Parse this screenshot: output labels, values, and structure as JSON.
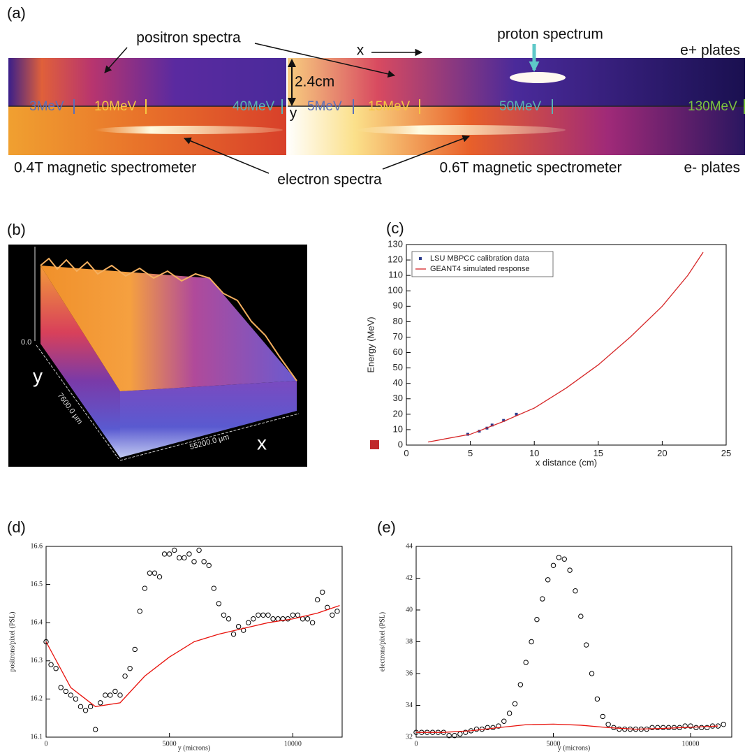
{
  "panel_a": {
    "panel_label": "(a)",
    "annotations": {
      "positron": "positron spectra",
      "proton": "proton spectrum",
      "x": "x",
      "e_plus": "e+ plates",
      "width": "2.4cm",
      "y": "y",
      "electron": "electron spectra",
      "left_spectrometer": "0.4T magnetic spectrometer",
      "right_spectrometer": "0.6T magnetic spectrometer",
      "e_minus": "e- plates"
    },
    "energy_marks": [
      "3MeV",
      "10MeV",
      "40MeV",
      "5MeV",
      "15MeV",
      "50MeV",
      "130MeV"
    ]
  },
  "panel_b": {
    "panel_label": "(b)",
    "z_label": "0.0",
    "y_label": "y",
    "y_extent": "7600.0 μm",
    "x_extent": "55200.0 μm",
    "x_label": "x"
  },
  "chart_data": [
    {
      "type": "scatter",
      "panel_label": "(c)",
      "x_label": "x distance (cm)",
      "y_label": "Energy (MeV)",
      "xlim": [
        0,
        25
      ],
      "xticks": [
        0,
        5,
        10,
        15,
        20,
        25
      ],
      "ylim": [
        0,
        130
      ],
      "yticks": [
        0,
        10,
        20,
        30,
        40,
        50,
        60,
        70,
        80,
        90,
        100,
        110,
        120,
        130
      ],
      "legend": "upper left",
      "series": [
        {
          "name": "LSU MBPCC calibration data",
          "mode": "markers",
          "marker": "square",
          "color": "#2b3a8c",
          "x": [
            4.8,
            5.7,
            6.3,
            6.7,
            7.6,
            8.6
          ],
          "values": [
            7,
            9,
            11,
            13,
            16,
            20
          ]
        },
        {
          "name": "GEANT4 simulated response",
          "mode": "line",
          "color": "#d62728",
          "x": [
            1.7,
            5,
            7.5,
            10,
            12.5,
            15,
            17.5,
            20,
            22,
            23.2
          ],
          "values": [
            2,
            7,
            15,
            24,
            37,
            52,
            70,
            90,
            110,
            125
          ]
        }
      ]
    },
    {
      "type": "scatter",
      "panel_label": "(d)",
      "x_label": "y (microns)",
      "y_label": "positrons/pixel (PSL)",
      "xlim": [
        0,
        12000
      ],
      "xticks": [
        0,
        5000,
        10000
      ],
      "ylim": [
        16.1,
        16.6
      ],
      "yticks": [
        16.1,
        16.2,
        16.3,
        16.4,
        16.5,
        16.6
      ],
      "series": [
        {
          "mode": "markers",
          "marker": "circle",
          "color": "#000000",
          "x": [
            0,
            200,
            400,
            600,
            800,
            1000,
            1200,
            1400,
            1600,
            1800,
            2000,
            2200,
            2400,
            2600,
            2800,
            3000,
            3200,
            3400,
            3600,
            3800,
            4000,
            4200,
            4400,
            4600,
            4800,
            5000,
            5200,
            5400,
            5600,
            5800,
            6000,
            6200,
            6400,
            6600,
            6800,
            7000,
            7200,
            7400,
            7600,
            7800,
            8000,
            8200,
            8400,
            8600,
            8800,
            9000,
            9200,
            9400,
            9600,
            9800,
            10000,
            10200,
            10400,
            10600,
            10800,
            11000,
            11200,
            11400,
            11600,
            11800
          ],
          "values": [
            16.35,
            16.29,
            16.28,
            16.23,
            16.22,
            16.21,
            16.2,
            16.18,
            16.17,
            16.18,
            16.12,
            16.19,
            16.21,
            16.21,
            16.22,
            16.21,
            16.26,
            16.28,
            16.33,
            16.43,
            16.49,
            16.53,
            16.53,
            16.52,
            16.58,
            16.58,
            16.59,
            16.57,
            16.57,
            16.58,
            16.56,
            16.59,
            16.56,
            16.55,
            16.49,
            16.45,
            16.42,
            16.41,
            16.37,
            16.39,
            16.38,
            16.4,
            16.41,
            16.42,
            16.42,
            16.42,
            16.41,
            16.41,
            16.41,
            16.41,
            16.42,
            16.42,
            16.41,
            16.41,
            16.4,
            16.46,
            16.48,
            16.44,
            16.42,
            16.43
          ]
        },
        {
          "mode": "line",
          "color": "#e8120c",
          "x": [
            0,
            1000,
            2000,
            3000,
            4000,
            5000,
            6000,
            7000,
            8000,
            9000,
            10000,
            11000,
            11900
          ],
          "values": [
            16.35,
            16.23,
            16.18,
            16.19,
            16.26,
            16.31,
            16.35,
            16.37,
            16.385,
            16.4,
            16.41,
            16.425,
            16.445
          ]
        }
      ]
    },
    {
      "type": "scatter",
      "panel_label": "(e)",
      "x_label": "y (microns)",
      "y_label": "electrons/pixel (PSL)",
      "xlim": [
        0,
        11500
      ],
      "xticks": [
        0,
        5000,
        10000
      ],
      "ylim": [
        32,
        44
      ],
      "yticks": [
        32,
        34,
        36,
        38,
        40,
        42,
        44
      ],
      "series": [
        {
          "mode": "markers",
          "marker": "circle",
          "color": "#000000",
          "x": [
            0,
            200,
            400,
            600,
            800,
            1000,
            1200,
            1400,
            1600,
            1800,
            2000,
            2200,
            2400,
            2600,
            2800,
            3000,
            3200,
            3400,
            3600,
            3800,
            4000,
            4200,
            4400,
            4600,
            4800,
            5000,
            5200,
            5400,
            5600,
            5800,
            6000,
            6200,
            6400,
            6600,
            6800,
            7000,
            7200,
            7400,
            7600,
            7800,
            8000,
            8200,
            8400,
            8600,
            8800,
            9000,
            9200,
            9400,
            9600,
            9800,
            10000,
            10200,
            10400,
            10600,
            10800,
            11000,
            11200
          ],
          "values": [
            32.3,
            32.3,
            32.3,
            32.3,
            32.3,
            32.3,
            32.1,
            32.1,
            32.2,
            32.3,
            32.4,
            32.5,
            32.5,
            32.6,
            32.6,
            32.7,
            33.0,
            33.5,
            34.1,
            35.3,
            36.7,
            38.0,
            39.4,
            40.7,
            41.9,
            42.8,
            43.3,
            43.2,
            42.5,
            41.2,
            39.6,
            37.8,
            36.0,
            34.4,
            33.3,
            32.8,
            32.6,
            32.5,
            32.5,
            32.5,
            32.5,
            32.5,
            32.5,
            32.6,
            32.6,
            32.6,
            32.6,
            32.6,
            32.6,
            32.7,
            32.7,
            32.6,
            32.6,
            32.6,
            32.7,
            32.7,
            32.8
          ]
        },
        {
          "mode": "line",
          "color": "#e8120c",
          "x": [
            0,
            1000,
            2000,
            3000,
            4000,
            5000,
            6000,
            7000,
            8000,
            9000,
            10000,
            11000
          ],
          "values": [
            32.3,
            32.3,
            32.4,
            32.6,
            32.78,
            32.82,
            32.75,
            32.6,
            32.5,
            32.55,
            32.62,
            32.7
          ]
        }
      ]
    }
  ]
}
